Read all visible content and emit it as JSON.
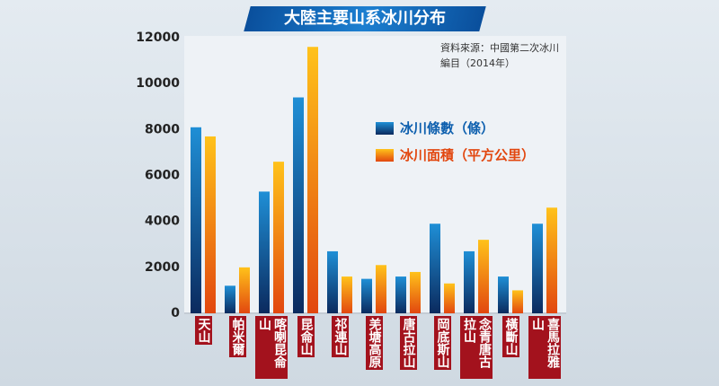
{
  "chart_data": {
    "type": "bar",
    "title": "大陸主要山系冰川分布",
    "source": "資料來源：中國第二次冰川編目（2014年）",
    "categories": [
      "天山",
      "帕米爾",
      "喀喇昆侖山",
      "昆侖山",
      "祁連山",
      "羌塘高原",
      "唐古拉山",
      "岡底斯山",
      "念青唐古拉山",
      "橫斷山",
      "喜馬拉雅山"
    ],
    "series": [
      {
        "name": "冰川條數（條）",
        "color": "#1f8fd6",
        "values": [
          8100,
          1200,
          5300,
          9400,
          2700,
          1500,
          1600,
          3900,
          2700,
          1600,
          3900
        ]
      },
      {
        "name": "冰川面積（平方公里）",
        "color": "#ffc21a",
        "values": [
          7700,
          2000,
          6600,
          11600,
          1600,
          2100,
          1800,
          1300,
          3200,
          1000,
          4600
        ]
      }
    ],
    "ylim": [
      0,
      12000
    ],
    "yticks": [
      0,
      2000,
      4000,
      6000,
      8000,
      10000,
      12000
    ]
  }
}
